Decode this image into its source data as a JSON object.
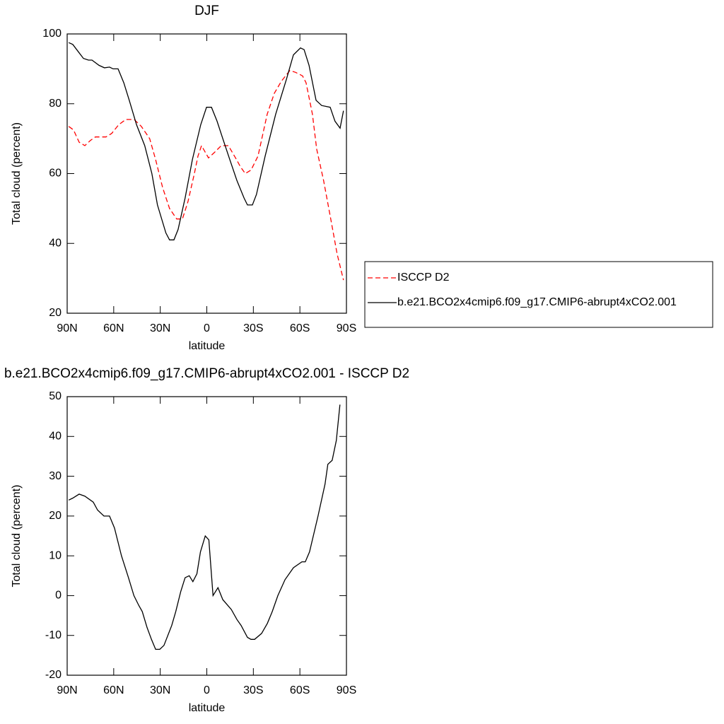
{
  "chart_data": [
    {
      "type": "line",
      "title": "DJF",
      "xlabel": "latitude",
      "ylabel": "Total cloud (percent)",
      "xlim": [
        90,
        -90
      ],
      "ylim": [
        20,
        100
      ],
      "xticks": [
        {
          "value": 90,
          "label": "90N"
        },
        {
          "value": 60,
          "label": "60N"
        },
        {
          "value": 30,
          "label": "30N"
        },
        0,
        {
          "value": -30,
          "label": "30S"
        },
        {
          "value": -60,
          "label": "60S"
        },
        {
          "value": -90,
          "label": "90S"
        }
      ],
      "yticks": [
        20,
        40,
        60,
        80,
        100
      ],
      "legend": "right",
      "series": [
        {
          "name": "ISCCP D2",
          "color": "#ff0000",
          "dashed": true,
          "x": [
            89,
            85.9,
            82.3,
            78.6,
            75,
            71.8,
            65,
            61.3,
            56.8,
            52.2,
            46.8,
            42.2,
            36.8,
            33,
            28.5,
            24,
            19.4,
            15.7,
            12.1,
            8,
            5.7,
            3.4,
            -1.1,
            -4.8,
            -9.3,
            -13.9,
            -18.5,
            -21.6,
            -24.8,
            -28.5,
            -33,
            -38.9,
            -43.5,
            -48.1,
            -53.5,
            -57.2,
            -61.7,
            -64,
            -68.1,
            -70.8,
            -75.3,
            -79.9,
            -84,
            -86.7,
            -88.1
          ],
          "values": [
            73.5,
            72.5,
            69,
            68,
            69.5,
            70.5,
            70.5,
            71.5,
            74,
            75.5,
            75.5,
            73.5,
            70,
            64,
            56,
            50,
            47,
            47,
            52,
            60,
            65,
            68,
            64.5,
            66,
            68,
            68,
            64.5,
            62,
            60,
            61,
            65,
            77,
            83,
            86.5,
            89.5,
            89,
            88,
            86,
            77,
            67,
            58,
            47,
            37,
            32,
            29.5
          ]
        },
        {
          "name": "b.e21.BCO2x4cmip6.f09_g17.CMIP6-abrupt4xCO2.001",
          "color": "#000000",
          "dashed": false,
          "x": [
            89,
            86.4,
            83,
            79.5,
            76.3,
            74,
            69.5,
            66,
            62.7,
            60.4,
            57.2,
            53.5,
            50,
            45.3,
            40,
            35.4,
            31.8,
            26.4,
            24,
            21.2,
            18.5,
            14,
            9.3,
            3.9,
            0.2,
            -3,
            -6.6,
            -10.3,
            -14.8,
            -19.4,
            -24,
            -26.2,
            -29.4,
            -32,
            -37.6,
            -44.4,
            -51.3,
            -55.8,
            -60.4,
            -62.7,
            -65.9,
            -70.4,
            -74,
            -79.5,
            -82.6,
            -85.9,
            -88.1
          ],
          "values": [
            97.5,
            97,
            95,
            93,
            92.5,
            92.5,
            91,
            90.3,
            90.5,
            90,
            90,
            86,
            81,
            74,
            68,
            60,
            51,
            43,
            41,
            41,
            44,
            53,
            64,
            74,
            79,
            79,
            75,
            70,
            64,
            58,
            53,
            51,
            51,
            54,
            65,
            77,
            87,
            94,
            96,
            95.5,
            91,
            81,
            79.5,
            79,
            75,
            73,
            78
          ]
        }
      ]
    },
    {
      "type": "line",
      "title": "b.e21.BCO2x4cmip6.f09_g17.CMIP6-abrupt4xCO2.001 - ISCCP D2",
      "xlabel": "latitude",
      "ylabel": "Total cloud (percent)",
      "xlim": [
        90,
        -90
      ],
      "ylim": [
        -20,
        50
      ],
      "xticks": [
        {
          "value": 90,
          "label": "90N"
        },
        {
          "value": 60,
          "label": "60N"
        },
        {
          "value": 30,
          "label": "30N"
        },
        0,
        {
          "value": -30,
          "label": "30S"
        },
        {
          "value": -60,
          "label": "60S"
        },
        {
          "value": -90,
          "label": "90S"
        }
      ],
      "yticks": [
        -20,
        -10,
        0,
        10,
        20,
        30,
        40,
        50
      ],
      "series": [
        {
          "color": "#000000",
          "dashed": false,
          "x": [
            89,
            86.4,
            82.3,
            78.6,
            73.2,
            70.4,
            66.3,
            62.7,
            59.5,
            55,
            50.5,
            47,
            43.8,
            41.6,
            38.5,
            35.7,
            33,
            30.3,
            27.6,
            22.6,
            20,
            16.8,
            14,
            11.3,
            9,
            6.4,
            4.1,
            1,
            -1.3,
            -4,
            -7.2,
            -10.3,
            -15.8,
            -19.4,
            -22.1,
            -26.2,
            -28.5,
            -30.8,
            -35.3,
            -39,
            -42.2,
            -45.8,
            -50.4,
            -55.8,
            -61.3,
            -63.5,
            -66.2,
            -71.7,
            -76.2,
            -78,
            -80.8,
            -83.5,
            -85.8
          ],
          "values": [
            24,
            24.5,
            25.5,
            25,
            23.5,
            21.5,
            20,
            20,
            17,
            10,
            4.5,
            0,
            -2.5,
            -4,
            -8,
            -11,
            -13.5,
            -13.5,
            -12.5,
            -7.5,
            -4,
            1,
            4.5,
            5,
            3.5,
            5.5,
            11,
            15,
            14,
            -8e-09,
            2,
            -1,
            -3.5,
            -6,
            -7.5,
            -10.5,
            -11,
            -11,
            -9.5,
            -7,
            -4,
            0,
            4,
            7,
            8.5,
            8.5,
            11,
            20,
            28,
            33,
            34,
            39,
            48
          ]
        }
      ]
    }
  ]
}
